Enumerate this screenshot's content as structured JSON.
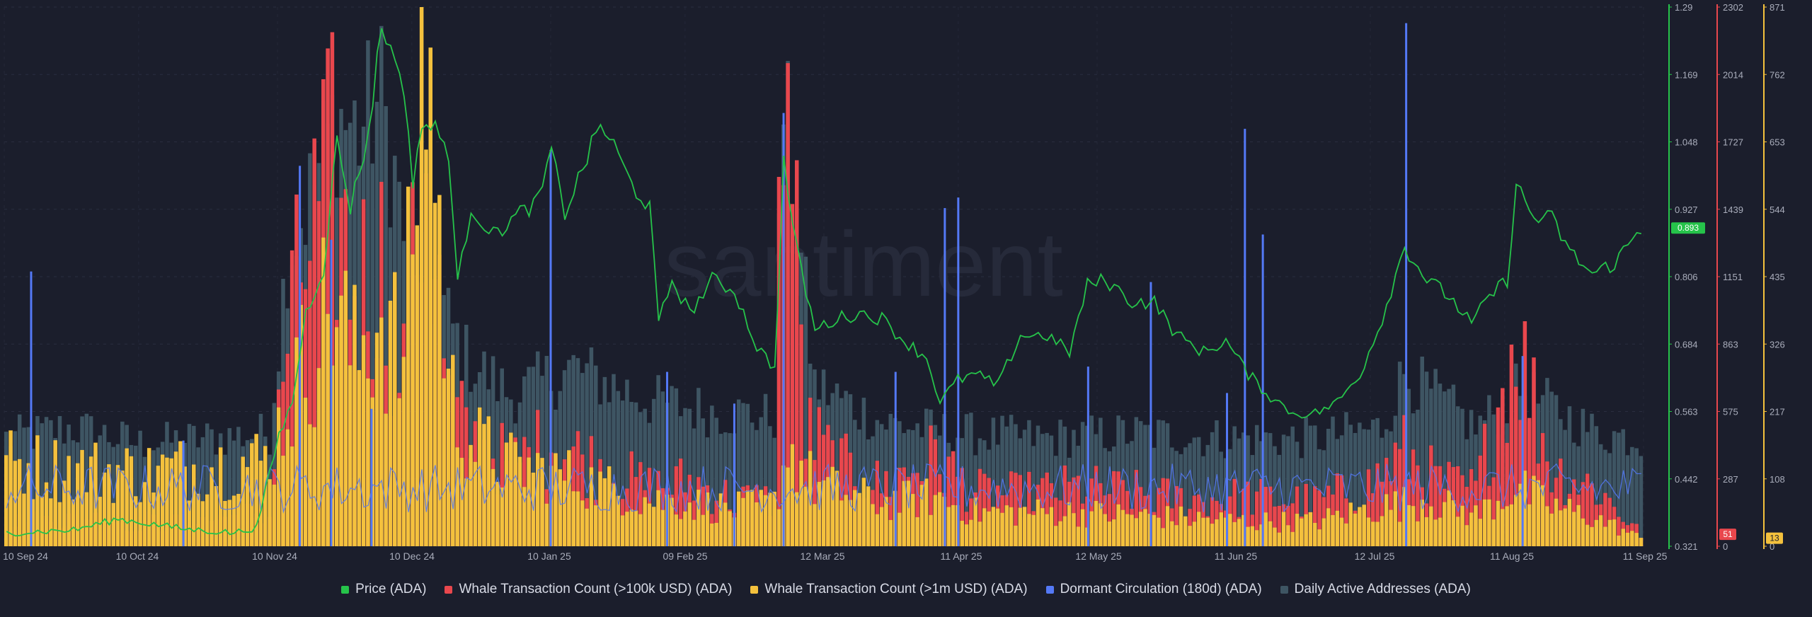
{
  "watermark": "santiment",
  "chart_data": {
    "type": "bar",
    "x_labels": [
      "10 Sep 24",
      "10 Oct 24",
      "10 Nov 24",
      "10 Dec 24",
      "10 Jan 25",
      "09 Feb 25",
      "12 Mar 25",
      "11 Apr 25",
      "12 May 25",
      "11 Jun 25",
      "12 Jul 25",
      "11 Aug 25",
      "11 Sep 25"
    ],
    "x_range": [
      "2024-09-10",
      "2025-09-11"
    ],
    "grid": true,
    "legend_position": "bottom",
    "axes": {
      "price": {
        "ticks": [
          "1.29",
          "1.169",
          "1.048",
          "0.927",
          "0.806",
          "0.684",
          "0.563",
          "0.442",
          "0.321"
        ],
        "range": [
          0.321,
          1.29
        ],
        "color": "#26c34a",
        "current_label": "0.893",
        "current_value": 0.893
      },
      "whale_100k": {
        "ticks": [
          "2302",
          "2014",
          "1727",
          "1439",
          "1151",
          "863",
          "575",
          "287",
          "0"
        ],
        "range": [
          0,
          2302
        ],
        "color": "#e9474d",
        "current_label": "51",
        "current_value": 51
      },
      "whale_1m": {
        "ticks": [
          "871",
          "762",
          "653",
          "544",
          "435",
          "326",
          "217",
          "108",
          "0"
        ],
        "range": [
          0,
          871
        ],
        "color": "#f4c13d",
        "current_label": "13",
        "current_value": 13
      }
    },
    "series": [
      {
        "name": "Price (ADA)",
        "color": "#26c34a",
        "render": "line",
        "points": [
          [
            "2024-09-10",
            0.345
          ],
          [
            "2024-09-25",
            0.35
          ],
          [
            "2024-10-05",
            0.37
          ],
          [
            "2024-10-20",
            0.352
          ],
          [
            "2024-10-31",
            0.345
          ],
          [
            "2024-11-05",
            0.355
          ],
          [
            "2024-11-10",
            0.52
          ],
          [
            "2024-11-13",
            0.58
          ],
          [
            "2024-11-16",
            0.74
          ],
          [
            "2024-11-20",
            0.82
          ],
          [
            "2024-11-23",
            1.05
          ],
          [
            "2024-11-26",
            0.93
          ],
          [
            "2024-11-30",
            1.06
          ],
          [
            "2024-12-03",
            1.26
          ],
          [
            "2024-12-05",
            1.21
          ],
          [
            "2024-12-07",
            1.19
          ],
          [
            "2024-12-10",
            0.98
          ],
          [
            "2024-12-12",
            1.08
          ],
          [
            "2024-12-15",
            1.07
          ],
          [
            "2024-12-18",
            1.03
          ],
          [
            "2024-12-20",
            0.79
          ],
          [
            "2024-12-23",
            0.93
          ],
          [
            "2024-12-28",
            0.88
          ],
          [
            "2025-01-03",
            0.92
          ],
          [
            "2025-01-07",
            0.94
          ],
          [
            "2025-01-10",
            1.03
          ],
          [
            "2025-01-13",
            0.92
          ],
          [
            "2025-01-17",
            1.0
          ],
          [
            "2025-01-21",
            1.08
          ],
          [
            "2025-01-24",
            1.04
          ],
          [
            "2025-01-28",
            0.97
          ],
          [
            "2025-02-01",
            0.93
          ],
          [
            "2025-02-03",
            0.72
          ],
          [
            "2025-02-06",
            0.8
          ],
          [
            "2025-02-10",
            0.74
          ],
          [
            "2025-02-15",
            0.8
          ],
          [
            "2025-02-20",
            0.78
          ],
          [
            "2025-02-25",
            0.68
          ],
          [
            "2025-03-01",
            0.64
          ],
          [
            "2025-03-03",
            1.01
          ],
          [
            "2025-03-06",
            0.85
          ],
          [
            "2025-03-10",
            0.71
          ],
          [
            "2025-03-15",
            0.73
          ],
          [
            "2025-03-20",
            0.74
          ],
          [
            "2025-03-25",
            0.73
          ],
          [
            "2025-03-30",
            0.69
          ],
          [
            "2025-04-04",
            0.66
          ],
          [
            "2025-04-07",
            0.58
          ],
          [
            "2025-04-11",
            0.62
          ],
          [
            "2025-04-15",
            0.63
          ],
          [
            "2025-04-20",
            0.61
          ],
          [
            "2025-04-25",
            0.7
          ],
          [
            "2025-05-01",
            0.7
          ],
          [
            "2025-05-06",
            0.67
          ],
          [
            "2025-05-10",
            0.79
          ],
          [
            "2025-05-14",
            0.8
          ],
          [
            "2025-05-20",
            0.76
          ],
          [
            "2025-05-25",
            0.76
          ],
          [
            "2025-05-30",
            0.7
          ],
          [
            "2025-06-05",
            0.67
          ],
          [
            "2025-06-10",
            0.69
          ],
          [
            "2025-06-15",
            0.63
          ],
          [
            "2025-06-20",
            0.59
          ],
          [
            "2025-06-25",
            0.56
          ],
          [
            "2025-06-30",
            0.56
          ],
          [
            "2025-07-05",
            0.58
          ],
          [
            "2025-07-10",
            0.63
          ],
          [
            "2025-07-15",
            0.73
          ],
          [
            "2025-07-20",
            0.86
          ],
          [
            "2025-07-25",
            0.8
          ],
          [
            "2025-07-30",
            0.77
          ],
          [
            "2025-08-04",
            0.72
          ],
          [
            "2025-08-08",
            0.77
          ],
          [
            "2025-08-12",
            0.8
          ],
          [
            "2025-08-14",
            0.97
          ],
          [
            "2025-08-18",
            0.91
          ],
          [
            "2025-08-22",
            0.91
          ],
          [
            "2025-08-26",
            0.85
          ],
          [
            "2025-08-31",
            0.81
          ],
          [
            "2025-09-05",
            0.83
          ],
          [
            "2025-09-11",
            0.893
          ]
        ]
      },
      {
        "name": "Whale Transaction Count (>100k USD) (ADA)",
        "color": "#e9474d",
        "render": "bars",
        "points": [
          [
            "2024-09-10",
            100
          ],
          [
            "2024-09-25",
            120
          ],
          [
            "2024-10-10",
            105
          ],
          [
            "2024-10-25",
            110
          ],
          [
            "2024-11-08",
            150
          ],
          [
            "2024-11-12",
            900
          ],
          [
            "2024-11-17",
            1300
          ],
          [
            "2024-11-22",
            1550
          ],
          [
            "2024-11-27",
            1100
          ],
          [
            "2024-12-03",
            1200
          ],
          [
            "2024-12-08",
            700
          ],
          [
            "2024-12-13",
            1700
          ],
          [
            "2024-12-18",
            600
          ],
          [
            "2024-12-23",
            450
          ],
          [
            "2025-01-01",
            350
          ],
          [
            "2025-01-10",
            450
          ],
          [
            "2025-01-20",
            350
          ],
          [
            "2025-02-01",
            250
          ],
          [
            "2025-02-10",
            280
          ],
          [
            "2025-02-20",
            200
          ],
          [
            "2025-03-01",
            200
          ],
          [
            "2025-03-03",
            2302
          ],
          [
            "2025-03-08",
            500
          ],
          [
            "2025-03-15",
            350
          ],
          [
            "2025-03-25",
            260
          ],
          [
            "2025-04-06",
            380
          ],
          [
            "2025-04-15",
            230
          ],
          [
            "2025-04-25",
            220
          ],
          [
            "2025-05-08",
            250
          ],
          [
            "2025-05-20",
            230
          ],
          [
            "2025-06-01",
            200
          ],
          [
            "2025-06-15",
            210
          ],
          [
            "2025-06-30",
            190
          ],
          [
            "2025-07-12",
            260
          ],
          [
            "2025-07-20",
            400
          ],
          [
            "2025-07-28",
            270
          ],
          [
            "2025-08-05",
            240
          ],
          [
            "2025-08-14",
            900
          ],
          [
            "2025-08-22",
            330
          ],
          [
            "2025-09-01",
            250
          ],
          [
            "2025-09-11",
            51
          ]
        ]
      },
      {
        "name": "Whale Transaction Count (>1m USD) (ADA)",
        "color": "#f4c13d",
        "render": "bars",
        "points": [
          [
            "2024-09-10",
            135
          ],
          [
            "2024-09-25",
            125
          ],
          [
            "2024-10-10",
            120
          ],
          [
            "2024-10-25",
            130
          ],
          [
            "2024-11-08",
            140
          ],
          [
            "2024-11-12",
            230
          ],
          [
            "2024-11-17",
            320
          ],
          [
            "2024-11-22",
            400
          ],
          [
            "2024-11-27",
            300
          ],
          [
            "2024-12-03",
            380
          ],
          [
            "2024-12-08",
            290
          ],
          [
            "2024-12-13",
            871
          ],
          [
            "2024-12-18",
            250
          ],
          [
            "2024-12-23",
            170
          ],
          [
            "2025-01-01",
            130
          ],
          [
            "2025-01-10",
            120
          ],
          [
            "2025-01-20",
            100
          ],
          [
            "2025-02-01",
            75
          ],
          [
            "2025-02-10",
            70
          ],
          [
            "2025-02-20",
            60
          ],
          [
            "2025-03-01",
            70
          ],
          [
            "2025-03-04",
            160
          ],
          [
            "2025-03-10",
            100
          ],
          [
            "2025-03-25",
            70
          ],
          [
            "2025-04-06",
            80
          ],
          [
            "2025-04-15",
            55
          ],
          [
            "2025-05-08",
            55
          ],
          [
            "2025-05-20",
            50
          ],
          [
            "2025-06-15",
            40
          ],
          [
            "2025-06-30",
            40
          ],
          [
            "2025-07-12",
            60
          ],
          [
            "2025-07-25",
            75
          ],
          [
            "2025-08-05",
            50
          ],
          [
            "2025-08-14",
            95
          ],
          [
            "2025-08-22",
            65
          ],
          [
            "2025-09-01",
            45
          ],
          [
            "2025-09-11",
            13
          ]
        ]
      },
      {
        "name": "Dormant Circulation (180d) (ADA)",
        "color": "#5479f6",
        "render": "thin-bars",
        "ticks_printed": false,
        "points": [
          [
            "2024-09-10",
            0.08
          ],
          [
            "2024-09-16",
            0.52
          ],
          [
            "2024-10-20",
            0.2
          ],
          [
            "2024-11-10",
            0.11
          ],
          [
            "2024-11-15",
            0.72
          ],
          [
            "2024-11-22",
            0.58
          ],
          [
            "2024-12-01",
            0.26
          ],
          [
            "2024-12-20",
            0.12
          ],
          [
            "2025-01-10",
            0.75
          ],
          [
            "2025-02-05",
            0.33
          ],
          [
            "2025-02-20",
            0.27
          ],
          [
            "2025-03-03",
            0.82
          ],
          [
            "2025-03-15",
            0.18
          ],
          [
            "2025-03-28",
            0.33
          ],
          [
            "2025-04-08",
            0.64
          ],
          [
            "2025-04-11",
            0.66
          ],
          [
            "2025-04-15",
            0.1
          ],
          [
            "2025-05-10",
            0.34
          ],
          [
            "2025-05-24",
            0.5
          ],
          [
            "2025-06-10",
            0.29
          ],
          [
            "2025-06-14",
            0.79
          ],
          [
            "2025-06-18",
            0.59
          ],
          [
            "2025-06-25",
            0.12
          ],
          [
            "2025-07-20",
            0.99
          ],
          [
            "2025-08-15",
            0.36
          ],
          [
            "2025-09-05",
            0.16
          ],
          [
            "2025-09-11",
            0.17
          ]
        ]
      },
      {
        "name": "Daily Active Addresses (ADA)",
        "color": "#3e5563",
        "render": "bars",
        "ticks_printed": false,
        "points": [
          [
            "2024-09-10",
            0.2
          ],
          [
            "2024-09-25",
            0.22
          ],
          [
            "2024-10-10",
            0.19
          ],
          [
            "2024-10-25",
            0.2
          ],
          [
            "2024-11-08",
            0.21
          ],
          [
            "2024-11-12",
            0.55
          ],
          [
            "2024-11-17",
            0.65
          ],
          [
            "2024-11-23",
            0.8
          ],
          [
            "2024-11-28",
            0.77
          ],
          [
            "2024-12-03",
            0.83
          ],
          [
            "2024-12-08",
            0.59
          ],
          [
            "2024-12-15",
            0.47
          ],
          [
            "2024-12-22",
            0.35
          ],
          [
            "2025-01-01",
            0.28
          ],
          [
            "2025-01-15",
            0.33
          ],
          [
            "2025-02-01",
            0.27
          ],
          [
            "2025-02-15",
            0.25
          ],
          [
            "2025-03-01",
            0.24
          ],
          [
            "2025-03-03",
            0.83
          ],
          [
            "2025-03-10",
            0.3
          ],
          [
            "2025-03-25",
            0.23
          ],
          [
            "2025-04-10",
            0.21
          ],
          [
            "2025-05-01",
            0.2
          ],
          [
            "2025-05-20",
            0.21
          ],
          [
            "2025-06-10",
            0.2
          ],
          [
            "2025-06-30",
            0.2
          ],
          [
            "2025-07-15",
            0.22
          ],
          [
            "2025-07-20",
            0.32
          ],
          [
            "2025-08-05",
            0.22
          ],
          [
            "2025-08-15",
            0.29
          ],
          [
            "2025-09-01",
            0.21
          ],
          [
            "2025-09-11",
            0.2
          ]
        ]
      }
    ]
  }
}
